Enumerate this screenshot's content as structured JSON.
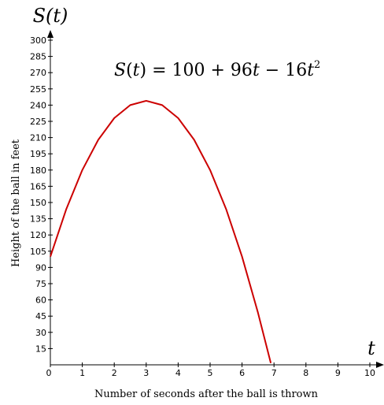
{
  "chart_data": {
    "type": "line",
    "formula_text": "S(t) = 100 + 96t − 16t²",
    "formula": {
      "lhs_var": "S",
      "lhs_arg": "t",
      "rhs_main": "= 100 + 96",
      "rhs_t1": "t",
      "rhs_minus": " − 16",
      "rhs_t2": "t",
      "rhs_exp": "2"
    },
    "y_axis_var": "S(t)",
    "x_axis_var": "t",
    "xlabel": "Number of seconds after the ball is thrown",
    "ylabel": "Height of the ball in feet",
    "xlim": [
      0,
      10
    ],
    "ylim": [
      0,
      300
    ],
    "x_ticks": [
      0,
      1,
      2,
      3,
      4,
      5,
      6,
      7,
      8,
      9,
      10
    ],
    "y_ticks": [
      15,
      30,
      45,
      60,
      75,
      90,
      105,
      120,
      135,
      150,
      165,
      180,
      195,
      210,
      225,
      240,
      255,
      270,
      285,
      300
    ],
    "grid": false,
    "series": [
      {
        "color": "#cc0000",
        "x": [
          0,
          0.5,
          1,
          1.5,
          2,
          2.5,
          3,
          3.5,
          4,
          4.5,
          5,
          5.5,
          6,
          6.5,
          6.9
        ],
        "values": [
          100,
          144,
          180,
          208,
          228,
          240,
          244,
          240,
          228,
          208,
          180,
          144,
          100,
          48,
          1.6
        ]
      }
    ]
  }
}
